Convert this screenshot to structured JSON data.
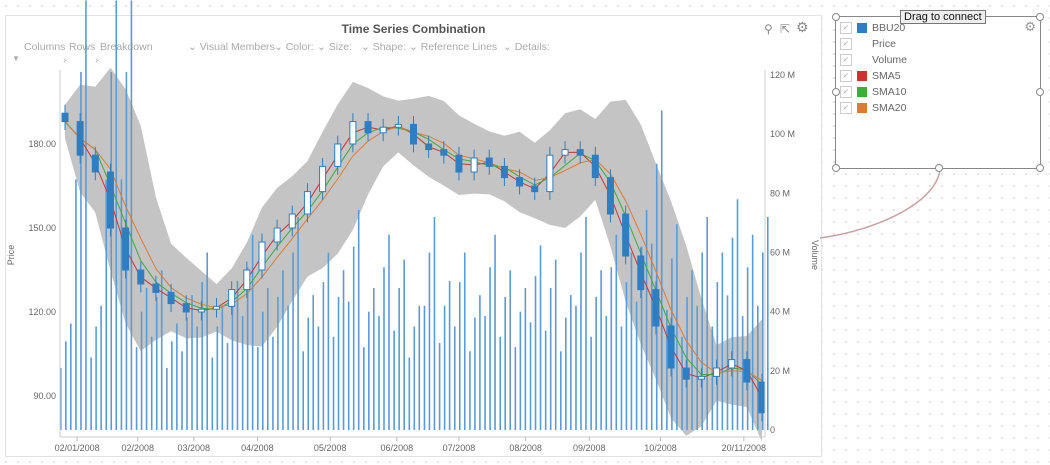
{
  "header": {
    "title": "Time Series Combination"
  },
  "shelves": {
    "columns": "Columns",
    "rows": "Rows",
    "breakdown": "Breakdown",
    "visual_members": "Visual Members",
    "color": "Color:",
    "size": "Size:",
    "shape": "Shape:",
    "reference_lines": "Reference Lines",
    "details": "Details:"
  },
  "legend": {
    "drag_label": "Drag to connect",
    "items": [
      {
        "label": "BBU20",
        "color": "#2f7ec1"
      },
      {
        "label": "Price",
        "color": ""
      },
      {
        "label": "Volume",
        "color": ""
      },
      {
        "label": "SMA5",
        "color": "#d03030"
      },
      {
        "label": "SMA10",
        "color": "#3aad3a"
      },
      {
        "label": "SMA20",
        "color": "#e07a30"
      }
    ]
  },
  "chart_data": {
    "type": "candlestick+bar",
    "title": "Time Series Combination",
    "ylabel": "Price",
    "y2label": "Volume",
    "ylim": [
      75.4,
      206.4
    ],
    "y2lim": [
      0,
      121
    ],
    "yticks": [
      "90.00",
      "120.00",
      "150.00",
      "180.00"
    ],
    "ytick_values": [
      90,
      120,
      150,
      180
    ],
    "y2ticks": [
      "0",
      "20 M",
      "40 M",
      "60 M",
      "80 M",
      "100 M",
      "120 M"
    ],
    "y2tick_values": [
      0,
      20,
      40,
      60,
      80,
      100,
      120
    ],
    "xticks": [
      {
        "label": "02/01/2008",
        "week": 0.8
      },
      {
        "label": "02/2008",
        "week": 4.8
      },
      {
        "label": "03/2008",
        "week": 8.5
      },
      {
        "label": "04/2008",
        "week": 12.7
      },
      {
        "label": "05/2008",
        "week": 17.5
      },
      {
        "label": "06/2008",
        "week": 21.9
      },
      {
        "label": "07/2008",
        "week": 26
      },
      {
        "label": "08/2008",
        "week": 30.4
      },
      {
        "label": "09/2008",
        "week": 34.6
      },
      {
        "label": "10/2008",
        "week": 39.3
      },
      {
        "label": "20/11/2008",
        "week": 44.8
      }
    ],
    "close": [
      188,
      176,
      170,
      150,
      135,
      130,
      127,
      123,
      120,
      121,
      122,
      128,
      135,
      145,
      150,
      155,
      163,
      172,
      180,
      188,
      184,
      186,
      187,
      180,
      178,
      176,
      170,
      175,
      172,
      168,
      165,
      163,
      176,
      178,
      176,
      168,
      155,
      140,
      128,
      115,
      100,
      96,
      97,
      100,
      103,
      95,
      84
    ],
    "volume_m": [
      30,
      121,
      35,
      121,
      121,
      40,
      45,
      30,
      38,
      50,
      35,
      42,
      55,
      40,
      45,
      60,
      38,
      50,
      45,
      62,
      40,
      55,
      48,
      35,
      60,
      42,
      50,
      38,
      55,
      45,
      40,
      52,
      48,
      38,
      60,
      45,
      55,
      50,
      62,
      90,
      58,
      45,
      60,
      50,
      65,
      55,
      60
    ]
  }
}
